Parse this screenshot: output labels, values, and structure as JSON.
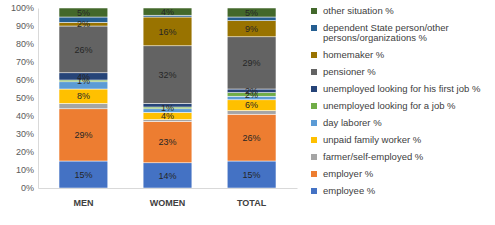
{
  "chart_data": {
    "type": "bar",
    "stacked": true,
    "data_labels": true,
    "grid": false,
    "legend": "right",
    "categories": [
      "MEN",
      "WOMEN",
      "TOTAL"
    ],
    "ylim": [
      0,
      100
    ],
    "yticks": [
      {
        "value": 0,
        "label": "0%"
      },
      {
        "value": 10,
        "label": "10%"
      },
      {
        "value": 20,
        "label": "20%"
      },
      {
        "value": 30,
        "label": "30%"
      },
      {
        "value": 40,
        "label": "40%"
      },
      {
        "value": 50,
        "label": "50%"
      },
      {
        "value": 60,
        "label": "60%"
      },
      {
        "value": 70,
        "label": "70%"
      },
      {
        "value": 80,
        "label": "80%"
      },
      {
        "value": 90,
        "label": "90%"
      },
      {
        "value": 100,
        "label": "100%"
      }
    ],
    "series": [
      {
        "name": "employee %",
        "color": "#4472c4",
        "values": [
          15,
          14,
          15
        ],
        "value_labels": [
          "15%",
          "14%",
          "15%"
        ]
      },
      {
        "name": "employer %",
        "color": "#ed7d31",
        "values": [
          29,
          23,
          26
        ],
        "value_labels": [
          "29%",
          "23%",
          "26%"
        ]
      },
      {
        "name": "farmer/self-employed %",
        "color": "#a5a5a5",
        "values": [
          3,
          1,
          2
        ],
        "value_labels": [
          null,
          null,
          null
        ]
      },
      {
        "name": "unpaid family worker %",
        "color": "#ffc000",
        "values": [
          8,
          4,
          6
        ],
        "value_labels": [
          "8%",
          "4%",
          "6%"
        ]
      },
      {
        "name": "day laborer %",
        "color": "#5b9bd5",
        "values": [
          4,
          2,
          2
        ],
        "value_labels": [
          null,
          null,
          null
        ]
      },
      {
        "name": "unemployed looking for a job %",
        "color": "#70ad47",
        "values": [
          1,
          1,
          2
        ],
        "value_labels": [
          "1%",
          "1%",
          "2%"
        ]
      },
      {
        "name": "unemployed looking for his first job %",
        "color": "#264478",
        "values": [
          4,
          2,
          2
        ],
        "value_labels": [
          "4%",
          null,
          "2%"
        ]
      },
      {
        "name": "pensioner %",
        "color": "#636363",
        "values": [
          26,
          32,
          29
        ],
        "value_labels": [
          "26%",
          "32%",
          "29%"
        ]
      },
      {
        "name": "homemaker %",
        "color": "#997300",
        "values": [
          2,
          16,
          9
        ],
        "value_labels": [
          "2%",
          "16%",
          "9%"
        ]
      },
      {
        "name": "dependent State person/other persons/organizations %",
        "color": "#255e91",
        "values": [
          3,
          1,
          2
        ],
        "value_labels": [
          null,
          null,
          null
        ]
      },
      {
        "name": "other situation %",
        "color": "#43682b",
        "values": [
          5,
          4,
          5
        ],
        "value_labels": [
          "5%",
          "4%",
          "5%"
        ]
      }
    ]
  }
}
